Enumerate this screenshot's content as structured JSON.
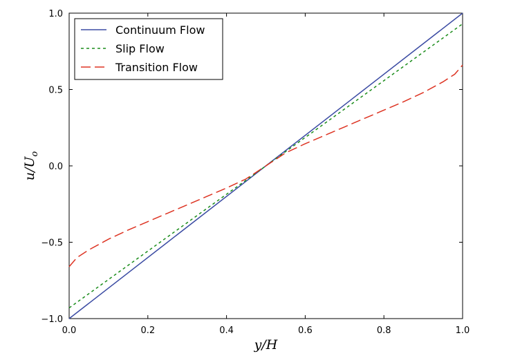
{
  "chart_data": {
    "type": "line",
    "xlabel": "y/H",
    "ylabel": "u/U",
    "ylabel_subscript": "o",
    "xlim": [
      0.0,
      1.0
    ],
    "ylim": [
      -1.0,
      1.0
    ],
    "xticks": [
      0.0,
      0.2,
      0.4,
      0.6,
      0.8,
      1.0
    ],
    "xtick_labels": [
      "0.0",
      "0.2",
      "0.4",
      "0.6",
      "0.8",
      "1.0"
    ],
    "yticks": [
      -1.0,
      -0.5,
      0.0,
      0.5,
      1.0
    ],
    "ytick_labels": [
      "−1.0",
      "−0.5",
      "0.0",
      "0.5",
      "1.0"
    ],
    "grid": false,
    "legend_position": "top-left",
    "series": [
      {
        "name": "Continuum Flow",
        "color": "#3b4ba3",
        "dash": "solid",
        "x": [
          0.0,
          0.25,
          0.5,
          0.75,
          1.0
        ],
        "y": [
          -1.0,
          -0.5,
          0.0,
          0.5,
          1.0
        ]
      },
      {
        "name": "Slip Flow",
        "color": "#1a8c1a",
        "dash": "dotted",
        "x": [
          0.0,
          0.25,
          0.5,
          0.75,
          1.0
        ],
        "y": [
          -0.93,
          -0.465,
          0.0,
          0.465,
          0.93
        ]
      },
      {
        "name": "Transition Flow",
        "color": "#dd3322",
        "dash": "dashed",
        "x": [
          0.0,
          0.02,
          0.05,
          0.1,
          0.15,
          0.2,
          0.25,
          0.3,
          0.35,
          0.4,
          0.45,
          0.5,
          0.55,
          0.6,
          0.65,
          0.7,
          0.75,
          0.8,
          0.85,
          0.9,
          0.95,
          0.98,
          1.0
        ],
        "y": [
          -0.66,
          -0.6,
          -0.55,
          -0.48,
          -0.42,
          -0.365,
          -0.31,
          -0.255,
          -0.2,
          -0.145,
          -0.085,
          0.0,
          0.085,
          0.145,
          0.2,
          0.255,
          0.31,
          0.365,
          0.42,
          0.48,
          0.55,
          0.6,
          0.66
        ]
      }
    ]
  }
}
